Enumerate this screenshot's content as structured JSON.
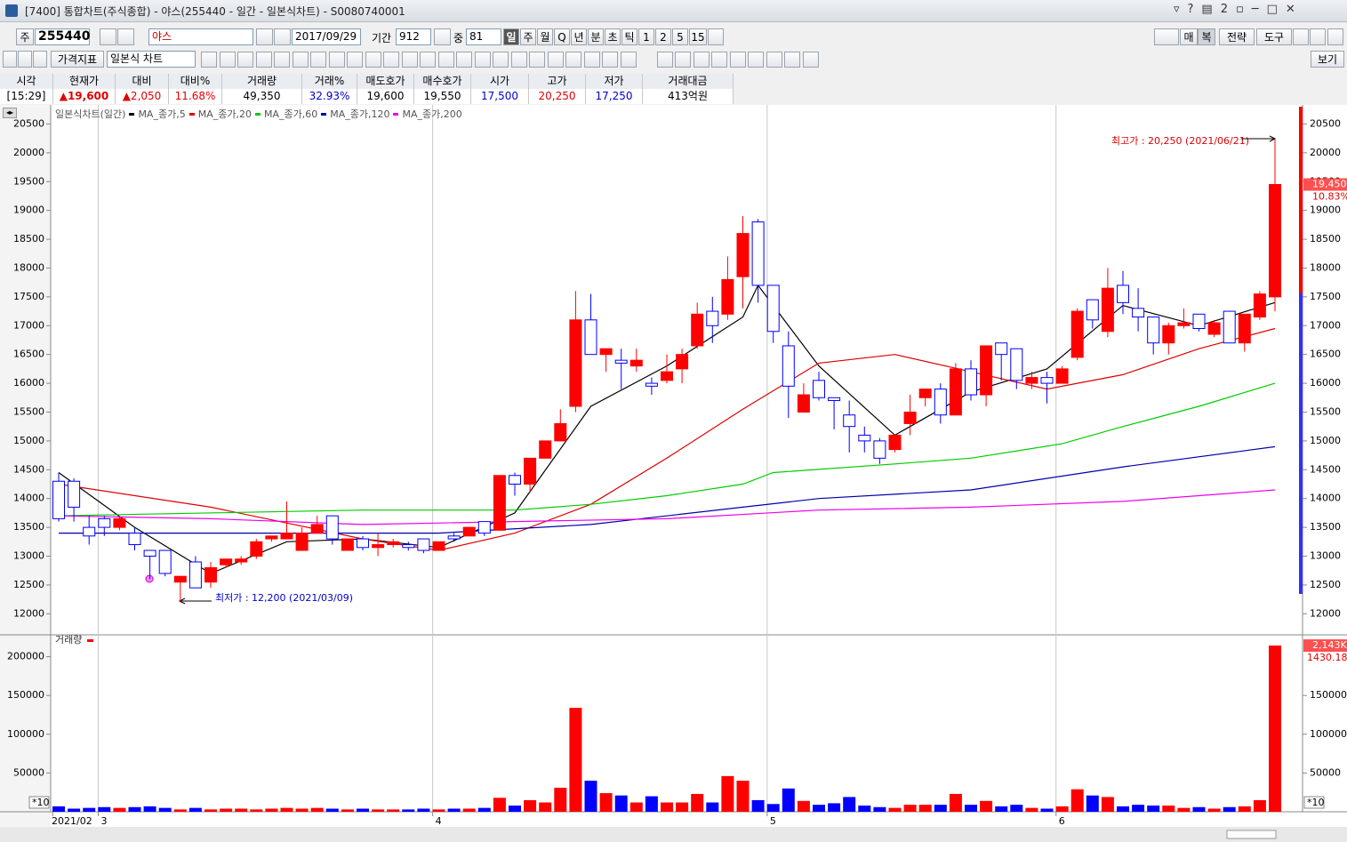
{
  "window": {
    "title": "[7400] 통합차트(주식종합) - 야스(255440 - 일간 - 일본식차트) - S0080740001"
  },
  "toolbar": {
    "market": "주",
    "code": "255440",
    "name": "야스",
    "date": "2017/09/29",
    "period_label": "기간",
    "period": "912",
    "mid_label": "중",
    "mid": "81",
    "periods": [
      "일",
      "주",
      "월",
      "Q",
      "년",
      "분",
      "초",
      "틱",
      "1",
      "2",
      "5",
      "15"
    ],
    "right_buttons": [
      "매",
      "복",
      "전략",
      "도구"
    ],
    "indicator": "가격지표",
    "chart_kind": "일본식 차트",
    "view": "보기"
  },
  "quote": {
    "headers": [
      "시각",
      "현재가",
      "대비",
      "대비%",
      "거래량",
      "거래%",
      "매도호가",
      "매수호가",
      "시가",
      "고가",
      "저가",
      "거래대금"
    ],
    "values": [
      "[15:29]",
      "▲19,600",
      "▲2,050",
      "11.68%",
      "49,350",
      "32.93%",
      "19,600",
      "19,550",
      "17,500",
      "20,250",
      "17,250",
      "413억원"
    ]
  },
  "chart_data": {
    "type": "candlestick",
    "legend_title": "일본식차트(일간)",
    "ylim": [
      11650,
      20800
    ],
    "yticks": [
      12000,
      12500,
      13000,
      13500,
      14000,
      14500,
      15000,
      15500,
      16000,
      16500,
      17000,
      17500,
      18000,
      18500,
      19000,
      19500,
      20000,
      20500
    ],
    "x_labels": [
      {
        "index": 0,
        "label": "2021/02"
      },
      {
        "index": 3,
        "label": "3"
      },
      {
        "index": 25,
        "label": "4"
      },
      {
        "index": 47,
        "label": "5"
      },
      {
        "index": 66,
        "label": "6"
      }
    ],
    "up_color": "#ff0000",
    "down_color": "#0000ff",
    "grid": true,
    "open": [
      14300,
      14300,
      13500,
      13650,
      13500,
      13400,
      13100,
      13100,
      12550,
      12900,
      12550,
      12850,
      12900,
      13000,
      13300,
      13300,
      13100,
      13400,
      13700,
      13100,
      13300,
      13150,
      13200,
      13200,
      13300,
      13100,
      13350,
      13350,
      13600,
      13450,
      14400,
      14250,
      14700,
      15000,
      15600,
      17100,
      16500,
      16400,
      16300,
      16000,
      16050,
      16250,
      16650,
      17250,
      17200,
      17850,
      18800,
      17700,
      16650,
      15500,
      16050,
      15750,
      15450,
      15100,
      15000,
      14850,
      15300,
      15750,
      15900,
      15450,
      16250,
      15800,
      16700,
      16600,
      16000,
      16100,
      16000,
      16450,
      17450,
      16900,
      17700,
      17300,
      17150,
      16700,
      17000,
      17200,
      16850,
      17250,
      16700,
      17150,
      17500
    ],
    "high": [
      14450,
      14350,
      13700,
      13700,
      13700,
      13500,
      13100,
      13100,
      12650,
      13000,
      12900,
      12950,
      13000,
      13300,
      13350,
      13950,
      13500,
      13700,
      13700,
      13300,
      13350,
      13400,
      13300,
      13250,
      13300,
      13250,
      13400,
      13500,
      13600,
      14400,
      14450,
      14700,
      15000,
      15550,
      17600,
      17550,
      16600,
      16600,
      16600,
      16100,
      16500,
      16600,
      17400,
      17500,
      18200,
      18900,
      18850,
      17700,
      16900,
      16000,
      16200,
      15750,
      15700,
      15250,
      15050,
      15100,
      15800,
      15900,
      16000,
      16350,
      16400,
      16650,
      16700,
      16600,
      16200,
      16200,
      16300,
      17300,
      17450,
      18000,
      17950,
      17650,
      17150,
      17050,
      17300,
      17200,
      17100,
      17250,
      17200,
      17600,
      20250
    ],
    "low": [
      13600,
      13600,
      13200,
      13350,
      13450,
      13100,
      12600,
      12650,
      12200,
      12450,
      12450,
      12800,
      12850,
      12950,
      13250,
      13300,
      13100,
      13400,
      13200,
      13100,
      13100,
      13000,
      13150,
      13100,
      13050,
      13100,
      13250,
      13350,
      13350,
      13450,
      14050,
      14100,
      14700,
      15000,
      15500,
      16500,
      16200,
      15900,
      16200,
      15800,
      16000,
      16000,
      16600,
      16700,
      17100,
      17300,
      17400,
      16700,
      15400,
      15500,
      15700,
      15200,
      14800,
      14800,
      14600,
      14800,
      15100,
      15600,
      15300,
      15450,
      15700,
      15600,
      16050,
      15900,
      15900,
      15650,
      16000,
      16400,
      16950,
      16800,
      17200,
      16900,
      16500,
      16500,
      16950,
      16900,
      16800,
      16700,
      16550,
      17100,
      17250
    ],
    "close": [
      13650,
      13850,
      13350,
      13500,
      13650,
      13200,
      13000,
      12700,
      12650,
      12450,
      12800,
      12950,
      12950,
      13250,
      13350,
      13400,
      13400,
      13550,
      13300,
      13300,
      13150,
      13200,
      13250,
      13150,
      13100,
      13250,
      13300,
      13500,
      13400,
      14400,
      14250,
      14700,
      15000,
      15300,
      17100,
      16500,
      16600,
      16350,
      16400,
      15950,
      16200,
      16500,
      17200,
      17000,
      17800,
      18600,
      17700,
      16900,
      15950,
      15800,
      15750,
      15700,
      15250,
      15000,
      14700,
      15100,
      15500,
      15900,
      15450,
      16250,
      15800,
      16650,
      16500,
      16050,
      16100,
      16000,
      16250,
      17250,
      17100,
      17650,
      17400,
      17150,
      16700,
      17000,
      17050,
      16950,
      17050,
      16700,
      17200,
      17550,
      19450
    ],
    "series": [
      {
        "name": "MA_종가,5",
        "color": "#000000",
        "x": [
          0,
          5,
          10,
          15,
          20,
          25,
          30,
          35,
          40,
          45,
          46,
          50,
          55,
          60,
          65,
          70,
          75,
          80
        ],
        "values": [
          14450,
          13500,
          12700,
          13250,
          13300,
          13150,
          13750,
          15600,
          16300,
          17150,
          17700,
          16300,
          15100,
          15850,
          16250,
          17350,
          17000,
          17400
        ]
      },
      {
        "name": "MA_종가,20",
        "color": "#dd0000",
        "x": [
          0,
          10,
          20,
          25,
          30,
          35,
          40,
          45,
          50,
          55,
          60,
          65,
          70,
          75,
          80
        ],
        "values": [
          14250,
          13850,
          13300,
          13100,
          13400,
          13900,
          14700,
          15550,
          16350,
          16500,
          16200,
          15900,
          16150,
          16600,
          16950
        ]
      },
      {
        "name": "MA_종가,60",
        "color": "#00cc00",
        "x": [
          0,
          20,
          30,
          35,
          40,
          45,
          47,
          55,
          60,
          66,
          70,
          75,
          80
        ],
        "values": [
          13700,
          13800,
          13800,
          13900,
          14050,
          14250,
          14450,
          14600,
          14700,
          14950,
          15250,
          15600,
          16000
        ]
      },
      {
        "name": "MA_종가,120",
        "color": "#0000aa",
        "x": [
          0,
          25,
          35,
          45,
          50,
          60,
          70,
          80
        ],
        "values": [
          13400,
          13400,
          13550,
          13850,
          14000,
          14150,
          14550,
          14900
        ]
      },
      {
        "name": "MA_종가,200",
        "color": "#ee00ee",
        "x": [
          0,
          10,
          20,
          30,
          40,
          50,
          60,
          70,
          80
        ],
        "values": [
          13700,
          13650,
          13550,
          13600,
          13650,
          13800,
          13850,
          13950,
          14150
        ]
      }
    ],
    "annotations": {
      "high": "최고가 : 20,250 (2021/06/21)",
      "low": "최저가 : 12,200 (2021/03/09)"
    },
    "last_price_label": "19,450",
    "last_change_label": "10.83%",
    "volume": {
      "title": "거래량",
      "multiplier": "*10",
      "ylim": [
        0,
        227000
      ],
      "yticks": [
        50000,
        100000,
        150000,
        200000
      ],
      "y2ticks": [
        50000,
        100000,
        150000
      ],
      "last_label": "2,143K",
      "last_change_label": "1430.18%",
      "values": [
        7000,
        4000,
        5000,
        6000,
        5000,
        6000,
        7000,
        5000,
        3000,
        5000,
        3000,
        4000,
        4000,
        3000,
        4000,
        5000,
        4000,
        5000,
        4000,
        3000,
        4000,
        3000,
        3000,
        3000,
        4000,
        3000,
        4000,
        4000,
        5000,
        18000,
        8000,
        15000,
        12000,
        31000,
        134000,
        40000,
        24000,
        21000,
        12000,
        20000,
        12000,
        12000,
        23000,
        12000,
        46000,
        40000,
        15000,
        10000,
        30000,
        14000,
        9000,
        11000,
        19000,
        8000,
        6000,
        5000,
        9000,
        9000,
        9000,
        23000,
        9000,
        14000,
        7000,
        9000,
        5000,
        4000,
        7000,
        29000,
        21000,
        19000,
        7000,
        9000,
        8000,
        8000,
        5000,
        6000,
        4000,
        6000,
        7000,
        15000,
        214300
      ]
    }
  }
}
